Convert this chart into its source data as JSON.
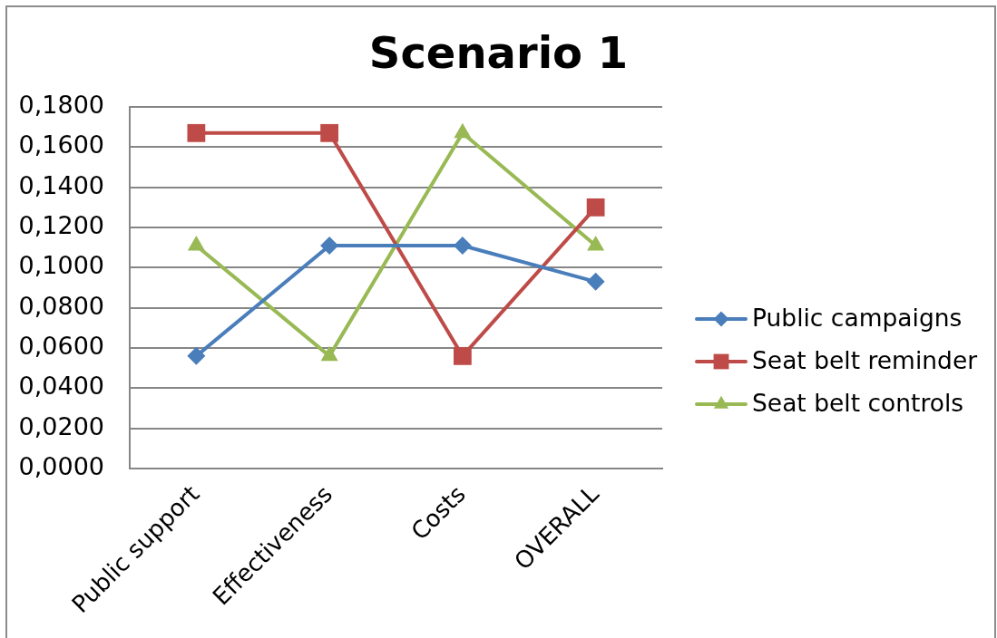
{
  "chart_data": {
    "type": "line",
    "title": "Scenario 1",
    "categories": [
      "Public support",
      "Effectiveness",
      "Costs",
      "OVERALL"
    ],
    "series": [
      {
        "name": "Public campaigns",
        "color": "#4a7ebb",
        "marker": "diamond",
        "values": [
          0.056,
          0.111,
          0.111,
          0.093
        ]
      },
      {
        "name": "Seat belt reminder",
        "color": "#be4b48",
        "marker": "square",
        "values": [
          0.167,
          0.167,
          0.056,
          0.13
        ]
      },
      {
        "name": "Seat belt controls",
        "color": "#98b954",
        "marker": "triangle",
        "values": [
          0.111,
          0.056,
          0.167,
          0.111
        ]
      }
    ],
    "ylim": [
      0,
      0.18
    ],
    "yticks": [
      {
        "value": 0,
        "label": "0,0000"
      },
      {
        "value": 0.02,
        "label": "0,0200"
      },
      {
        "value": 0.04,
        "label": "0,0400"
      },
      {
        "value": 0.06,
        "label": "0,0600"
      },
      {
        "value": 0.08,
        "label": "0,0800"
      },
      {
        "value": 0.1,
        "label": "0,1000"
      },
      {
        "value": 0.12,
        "label": "0,1200"
      },
      {
        "value": 0.14,
        "label": "0,1400"
      },
      {
        "value": 0.16,
        "label": "0,1600"
      },
      {
        "value": 0.18,
        "label": "0,1800"
      }
    ],
    "grid": "y",
    "legend": "right"
  }
}
